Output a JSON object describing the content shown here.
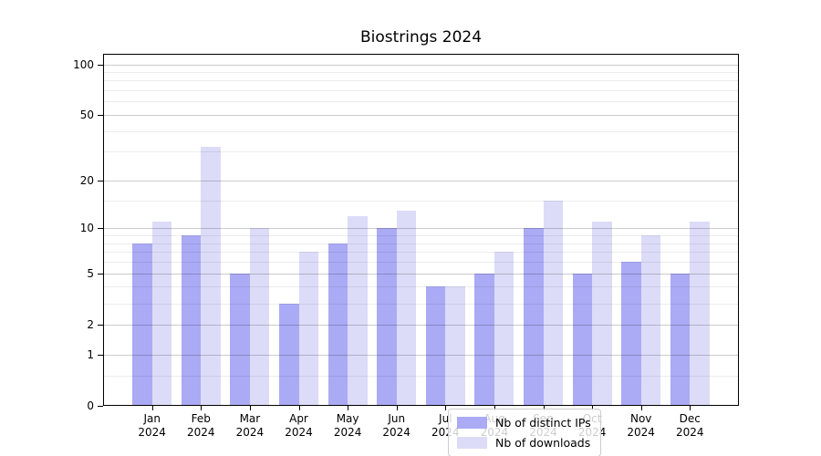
{
  "title": "Biostrings 2024",
  "legend": [
    {
      "label": "Nb of distinct IPs",
      "color": "#aaaaf5"
    },
    {
      "label": "Nb of downloads",
      "color": "#dcdcf8"
    }
  ],
  "chart_data": {
    "type": "bar",
    "title": "Biostrings 2024",
    "categories": [
      "Jan",
      "Feb",
      "Mar",
      "Apr",
      "May",
      "Jun",
      "Jul",
      "Aug",
      "Sep",
      "Oct",
      "Nov",
      "Dec"
    ],
    "year": "2024",
    "series": [
      {
        "name": "Nb of distinct IPs",
        "color": "#aaaaf5",
        "values": [
          8,
          9,
          5,
          3,
          8,
          10,
          4,
          5,
          10,
          5,
          6,
          5
        ]
      },
      {
        "name": "Nb of downloads",
        "color": "#dcdcf8",
        "values": [
          11,
          32,
          10,
          7,
          12,
          13,
          4,
          7,
          15,
          11,
          9,
          11
        ]
      }
    ],
    "yscale": "log10(value+1)",
    "yticks": [
      0,
      1,
      2,
      5,
      10,
      20,
      50,
      100
    ],
    "yticks_minor": [
      0.5,
      3,
      4,
      6,
      7,
      8,
      9,
      15,
      30,
      40,
      60,
      70,
      80,
      90
    ],
    "ylim": [
      0,
      115
    ],
    "grid": true,
    "legend_position": "inside-bottom-center"
  }
}
